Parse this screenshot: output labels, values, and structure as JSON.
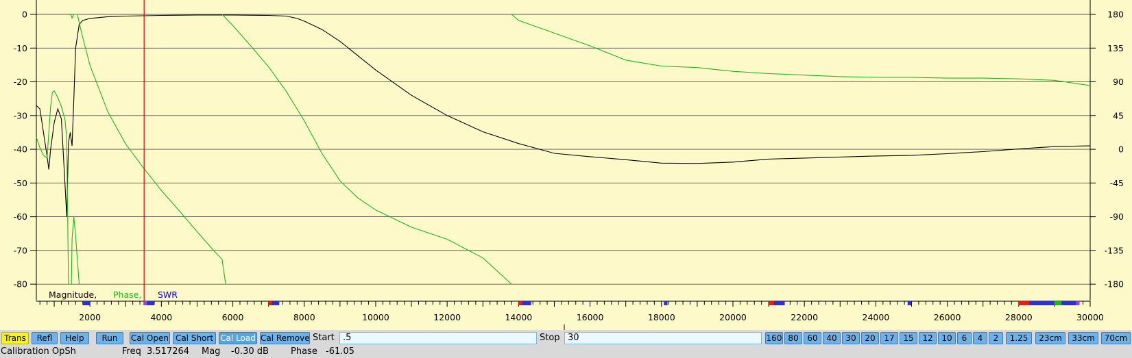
{
  "chart_data": {
    "type": "line",
    "x_ticks": [
      2000,
      4000,
      6000,
      8000,
      10000,
      12000,
      14000,
      16000,
      18000,
      20000,
      22000,
      24000,
      26000,
      28000,
      30000
    ],
    "xlim": [
      500,
      30000
    ],
    "left_axis": {
      "ticks": [
        0,
        -10,
        -20,
        -30,
        -40,
        -50,
        -60,
        -70,
        -80
      ],
      "ylim": [
        -82,
        0
      ]
    },
    "right_axis": {
      "ticks": [
        180,
        135,
        90,
        45,
        0,
        -45,
        -90,
        -135,
        -180
      ],
      "ylim": [
        -189,
        180
      ]
    },
    "legend": {
      "magnitude": "Magnitude,",
      "phase": "Phase,",
      "swr": "SWR"
    },
    "grid": true,
    "marker_x": 3517,
    "series": [
      {
        "name": "Magnitude",
        "axis": "left",
        "color": "#000000",
        "points": [
          [
            500,
            -27
          ],
          [
            600,
            -28
          ],
          [
            700,
            -35
          ],
          [
            800,
            -42
          ],
          [
            850,
            -46
          ],
          [
            900,
            -40
          ],
          [
            1000,
            -32
          ],
          [
            1100,
            -28
          ],
          [
            1200,
            -31
          ],
          [
            1300,
            -50
          ],
          [
            1350,
            -60
          ],
          [
            1400,
            -38
          ],
          [
            1450,
            -35
          ],
          [
            1500,
            -39
          ],
          [
            1550,
            -25
          ],
          [
            1600,
            -10
          ],
          [
            1700,
            -3
          ],
          [
            1800,
            -1.8
          ],
          [
            2000,
            -1.2
          ],
          [
            2500,
            -0.7
          ],
          [
            3000,
            -0.5
          ],
          [
            4000,
            -0.3
          ],
          [
            5000,
            -0.2
          ],
          [
            6000,
            -0.2
          ],
          [
            7000,
            -0.3
          ],
          [
            7500,
            -0.5
          ],
          [
            7800,
            -1.2
          ],
          [
            8000,
            -2
          ],
          [
            8500,
            -4.5
          ],
          [
            9000,
            -8
          ],
          [
            10000,
            -16.5
          ],
          [
            11000,
            -24
          ],
          [
            12000,
            -30
          ],
          [
            13000,
            -34.8
          ],
          [
            14000,
            -38.3
          ],
          [
            15000,
            -41.2
          ],
          [
            16000,
            -42.2
          ],
          [
            17000,
            -43.1
          ],
          [
            18000,
            -44.1
          ],
          [
            19000,
            -44.2
          ],
          [
            20000,
            -43.8
          ],
          [
            21000,
            -42.9
          ],
          [
            22000,
            -42.6
          ],
          [
            23000,
            -42.3
          ],
          [
            24000,
            -42
          ],
          [
            25000,
            -41.8
          ],
          [
            26000,
            -41.3
          ],
          [
            27000,
            -40.7
          ],
          [
            28000,
            -39.9
          ],
          [
            29000,
            -39.2
          ],
          [
            30000,
            -39
          ]
        ]
      },
      {
        "name": "Phase",
        "axis": "right",
        "color": "#1fb41f",
        "segments": [
          [
            [
              500,
              16
            ],
            [
              600,
              2
            ],
            [
              700,
              -8
            ],
            [
              800,
              -12
            ],
            [
              900,
              57
            ],
            [
              950,
              76
            ],
            [
              1000,
              78
            ],
            [
              1100,
              69
            ],
            [
              1200,
              57
            ],
            [
              1300,
              40
            ],
            [
              1350,
              15
            ],
            [
              1400,
              -180
            ]
          ],
          [
            [
              1450,
              180
            ],
            [
              1480,
              178
            ],
            [
              1500,
              175
            ],
            [
              1550,
              180
            ]
          ],
          [
            [
              1650,
              180
            ],
            [
              1700,
              169
            ],
            [
              1800,
              149
            ],
            [
              2000,
              112
            ],
            [
              2500,
              50
            ],
            [
              3000,
              7
            ],
            [
              3500,
              -25
            ],
            [
              4000,
              -55
            ],
            [
              4500,
              -82
            ],
            [
              5000,
              -110
            ],
            [
              5500,
              -137
            ],
            [
              5700,
              -147
            ],
            [
              5800,
              -180
            ]
          ],
          [
            [
              1550,
              180
            ],
            [
              1600,
              180
            ],
            [
              1650,
              180
            ]
          ],
          [
            [
              1480,
              -180
            ],
            [
              1500,
              -120
            ],
            [
              1550,
              -90
            ],
            [
              1600,
              -116
            ],
            [
              1700,
              -180
            ]
          ],
          [
            [
              5700,
              180
            ],
            [
              6000,
              165
            ],
            [
              6500,
              138
            ],
            [
              7000,
              110
            ],
            [
              7500,
              77
            ],
            [
              8000,
              38
            ],
            [
              8500,
              -6
            ],
            [
              9000,
              -42
            ],
            [
              9500,
              -65
            ],
            [
              10000,
              -81
            ],
            [
              11000,
              -104
            ],
            [
              12000,
              -120
            ],
            [
              13000,
              -145
            ],
            [
              13800,
              -180
            ]
          ],
          [
            [
              13800,
              180
            ],
            [
              14000,
              172
            ],
            [
              15000,
              155
            ],
            [
              16000,
              138
            ],
            [
              17000,
              119
            ],
            [
              17500,
              115
            ],
            [
              18000,
              111
            ],
            [
              19000,
              109
            ],
            [
              20000,
              104
            ],
            [
              21000,
              101
            ],
            [
              22000,
              99
            ],
            [
              23000,
              97
            ],
            [
              24000,
              96
            ],
            [
              25000,
              96
            ],
            [
              26000,
              95
            ],
            [
              27000,
              95
            ],
            [
              28000,
              94
            ],
            [
              29000,
              92
            ],
            [
              30000,
              85
            ]
          ]
        ]
      }
    ]
  },
  "toolbar": {
    "buttons": [
      "Trans",
      "Refl",
      "Help",
      "Run",
      "Cal Open",
      "Cal Short",
      "Cal Load",
      "Cal Remove"
    ],
    "start_label": "Start",
    "start_value": ".5",
    "stop_label": "Stop",
    "stop_value": "30",
    "bands": [
      "160",
      "80",
      "60",
      "40",
      "30",
      "20",
      "17",
      "15",
      "12",
      "10",
      "6",
      "4",
      "2",
      "1.25",
      "23cm",
      "33cm",
      "70cm"
    ]
  },
  "status": {
    "calibration": "Calibration OpSh",
    "freq_label": "Freq",
    "freq_value": "3.517264",
    "mag_label": "Mag",
    "mag_value": "-0.30 dB",
    "phase_label": "Phase",
    "phase_value": "-61.05"
  },
  "colors": {
    "plot_bg": "#fef9c8",
    "magnitude": "#000000",
    "phase": "#1fb41f",
    "swr": "#0000cc",
    "marker": "#e00000",
    "button": "#6fb2e8",
    "trans_button": "#f4f032"
  }
}
